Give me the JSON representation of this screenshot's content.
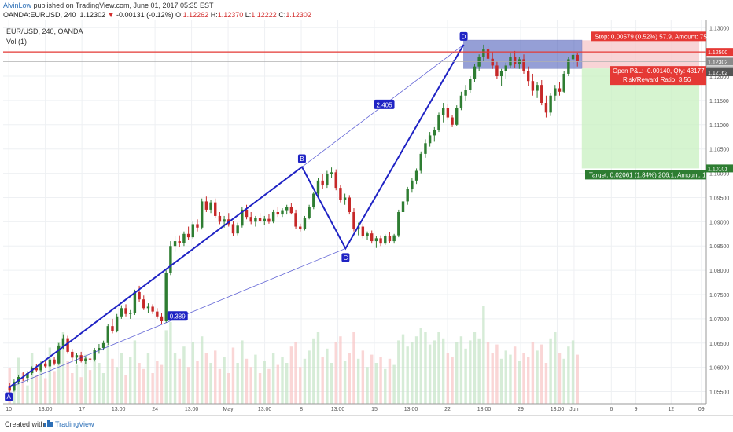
{
  "header": {
    "author": "AlvinLow",
    "published": "published on TradingView.com, June 01, 2017 05:35 EST",
    "symbol": "OANDA:EURUSD, 240",
    "last": "1.12302",
    "change": "-0.00131 (-0.12%)",
    "ohlc": {
      "o_label": "O:",
      "o": "1.12262",
      "h_label": "H:",
      "h": "1.12370",
      "l_label": "L:",
      "l": "1.12222",
      "c_label": "C:",
      "c": "1.12302"
    }
  },
  "legend": {
    "title": "EUR/USD, 240, OANDA",
    "vol": "Vol (1)"
  },
  "footer": {
    "created": "Created with",
    "brand": "TradingView"
  },
  "colors": {
    "up": "#2e7d32",
    "down": "#c62828",
    "pattern": "#1f23c4",
    "stop_zone": "#3f51b5",
    "target_zone": "#c8f0c0",
    "price_line": "#e53935"
  },
  "chart_data": {
    "type": "candlestick",
    "symbol": "EUR/USD",
    "interval": "240",
    "y_axis": {
      "range": [
        1.0525,
        1.1315
      ],
      "ticks": [
        "1.13000",
        "1.12500",
        "1.12000",
        "1.11500",
        "1.11000",
        "1.10500",
        "1.10000",
        "1.09500",
        "1.09000",
        "1.08500",
        "1.08000",
        "1.07500",
        "1.07000",
        "1.06500",
        "1.06000",
        "1.05500"
      ],
      "tick_values": [
        1.13,
        1.125,
        1.12,
        1.115,
        1.11,
        1.105,
        1.1,
        1.095,
        1.09,
        1.085,
        1.08,
        1.075,
        1.07,
        1.065,
        1.06,
        1.055
      ]
    },
    "x_axis": {
      "ticks": [
        "10",
        "13:00",
        "17",
        "13:00",
        "24",
        "13:00",
        "May",
        "13:00",
        "8",
        "13:00",
        "15",
        "13:00",
        "22",
        "13:00",
        "29",
        "13:00",
        "Jun",
        "6",
        "9",
        "12",
        "09"
      ],
      "tick_positions": [
        0.008,
        0.06,
        0.112,
        0.164,
        0.216,
        0.268,
        0.32,
        0.372,
        0.424,
        0.476,
        0.528,
        0.58,
        0.632,
        0.684,
        0.736,
        0.788,
        0.812,
        0.865,
        0.9,
        0.95,
        0.993
      ]
    },
    "price_labels": [
      {
        "value": "1.12500",
        "kind": "stop_line",
        "y": 1.125
      },
      {
        "value": "1.12302",
        "kind": "last",
        "y": 1.12302
      },
      {
        "value": "2:24:27",
        "kind": "countdown",
        "y": 1.1218
      },
      {
        "value": "1.12162",
        "kind": "entry",
        "y": 1.12162
      },
      {
        "value": "1.10101",
        "kind": "target",
        "y": 1.10101
      }
    ],
    "pattern": {
      "name": "ABCD",
      "points": [
        {
          "label": "A",
          "x": 0.008,
          "y": 1.0558
        },
        {
          "label": "B",
          "x": 0.425,
          "y": 1.1013
        },
        {
          "label": "C",
          "x": 0.487,
          "y": 1.0845
        },
        {
          "label": "D",
          "x": 0.655,
          "y": 1.1265
        }
      ],
      "ratios": [
        {
          "label": "0.389",
          "x": 0.248,
          "y": 1.0706
        },
        {
          "label": "2.405",
          "x": 0.542,
          "y": 1.1142
        }
      ]
    },
    "position": {
      "stop_text": "Stop: 0.00579 (0.52%) 57.9, Amount: 75",
      "pnl_text": "Open P&L: -0.00140, Qty: 43177",
      "rr_text": "Risk/Reward Ratio: 3.56",
      "target_text": "Target: 0.02061 (1.84%) 206.1, Amount: 1",
      "entry": 1.1216,
      "stop": 1.1274,
      "target": 1.101,
      "x_start": 0.655,
      "x_end": 0.99,
      "x_now": 0.823
    },
    "candles": [
      [
        1.056,
        1.0568,
        1.0548,
        1.0552
      ],
      [
        1.0552,
        1.0575,
        1.055,
        1.057
      ],
      [
        1.057,
        1.0585,
        1.0565,
        1.058
      ],
      [
        1.058,
        1.059,
        1.0572,
        1.0578
      ],
      [
        1.0578,
        1.0592,
        1.057,
        1.0588
      ],
      [
        1.0588,
        1.0602,
        1.0584,
        1.0598
      ],
      [
        1.0598,
        1.0606,
        1.059,
        1.0594
      ],
      [
        1.0594,
        1.0612,
        1.059,
        1.0608
      ],
      [
        1.0608,
        1.0614,
        1.0598,
        1.0602
      ],
      [
        1.0602,
        1.062,
        1.06,
        1.0616
      ],
      [
        1.0616,
        1.0622,
        1.0604,
        1.0608
      ],
      [
        1.0608,
        1.065,
        1.0605,
        1.0645
      ],
      [
        1.0645,
        1.0668,
        1.0638,
        1.066
      ],
      [
        1.066,
        1.0665,
        1.0628,
        1.0632
      ],
      [
        1.0632,
        1.0638,
        1.0612,
        1.062
      ],
      [
        1.062,
        1.063,
        1.0608,
        1.0625
      ],
      [
        1.0625,
        1.0632,
        1.061,
        1.0614
      ],
      [
        1.0614,
        1.0622,
        1.0606,
        1.0618
      ],
      [
        1.0618,
        1.0624,
        1.061,
        1.0616
      ],
      [
        1.0616,
        1.064,
        1.0612,
        1.0635
      ],
      [
        1.0635,
        1.0648,
        1.0628,
        1.064
      ],
      [
        1.064,
        1.0655,
        1.0635,
        1.065
      ],
      [
        1.065,
        1.069,
        1.0646,
        1.0685
      ],
      [
        1.0685,
        1.07,
        1.067,
        1.0675
      ],
      [
        1.0675,
        1.071,
        1.0672,
        1.0705
      ],
      [
        1.0705,
        1.0728,
        1.07,
        1.0722
      ],
      [
        1.0722,
        1.073,
        1.0705,
        1.071
      ],
      [
        1.071,
        1.0718,
        1.07,
        1.0712
      ],
      [
        1.0712,
        1.076,
        1.0708,
        1.0755
      ],
      [
        1.0755,
        1.0768,
        1.0735,
        1.074
      ],
      [
        1.074,
        1.0748,
        1.0718,
        1.0722
      ],
      [
        1.0722,
        1.0732,
        1.0712,
        1.0725
      ],
      [
        1.0725,
        1.073,
        1.071,
        1.0715
      ],
      [
        1.0715,
        1.0722,
        1.07,
        1.0705
      ],
      [
        1.0705,
        1.0712,
        1.069,
        1.0695
      ],
      [
        1.0695,
        1.08,
        1.0692,
        1.0795
      ],
      [
        1.0795,
        1.086,
        1.079,
        1.085
      ],
      [
        1.085,
        1.087,
        1.0838,
        1.086
      ],
      [
        1.086,
        1.0872,
        1.0848,
        1.0856
      ],
      [
        1.0856,
        1.088,
        1.085,
        1.0875
      ],
      [
        1.0875,
        1.089,
        1.0862,
        1.0868
      ],
      [
        1.0868,
        1.09,
        1.0865,
        1.0895
      ],
      [
        1.0895,
        1.0905,
        1.088,
        1.0888
      ],
      [
        1.0888,
        1.0948,
        1.0884,
        1.0942
      ],
      [
        1.0942,
        1.0952,
        1.092,
        1.0925
      ],
      [
        1.0925,
        1.0945,
        1.0918,
        1.094
      ],
      [
        1.094,
        1.0948,
        1.0908,
        1.0912
      ],
      [
        1.0912,
        1.092,
        1.0895,
        1.09
      ],
      [
        1.09,
        1.0912,
        1.0888,
        1.0905
      ],
      [
        1.0905,
        1.0918,
        1.089,
        1.0895
      ],
      [
        1.0895,
        1.0902,
        1.087,
        1.0876
      ],
      [
        1.0876,
        1.0898,
        1.0872,
        1.0892
      ],
      [
        1.0892,
        1.093,
        1.0888,
        1.0925
      ],
      [
        1.0925,
        1.0935,
        1.0905,
        1.091
      ],
      [
        1.091,
        1.092,
        1.0895,
        1.09
      ],
      [
        1.09,
        1.0912,
        1.089,
        1.0908
      ],
      [
        1.0908,
        1.0918,
        1.0898,
        1.0902
      ],
      [
        1.0902,
        1.0912,
        1.0894,
        1.0906
      ],
      [
        1.0906,
        1.0916,
        1.0896,
        1.09
      ],
      [
        1.09,
        1.0925,
        1.0897,
        1.092
      ],
      [
        1.092,
        1.093,
        1.091,
        1.0915
      ],
      [
        1.0915,
        1.0928,
        1.091,
        1.0924
      ],
      [
        1.0924,
        1.0935,
        1.0915,
        1.093
      ],
      [
        1.093,
        1.0938,
        1.0915,
        1.0918
      ],
      [
        1.0918,
        1.0925,
        1.0885,
        1.089
      ],
      [
        1.089,
        1.0896,
        1.088,
        1.0885
      ],
      [
        1.0885,
        1.0912,
        1.0882,
        1.0908
      ],
      [
        1.0908,
        1.0935,
        1.0905,
        1.093
      ],
      [
        1.093,
        1.0962,
        1.0926,
        1.0958
      ],
      [
        1.0958,
        1.099,
        1.0952,
        1.0985
      ],
      [
        1.0985,
        1.0998,
        1.0968,
        1.0975
      ],
      [
        1.0975,
        1.1005,
        1.097,
        1.0998
      ],
      [
        1.0998,
        1.1012,
        1.099,
        1.1002
      ],
      [
        1.1002,
        1.1008,
        1.0965,
        1.097
      ],
      [
        1.097,
        1.0975,
        1.094,
        1.0945
      ],
      [
        1.0945,
        1.0958,
        1.0935,
        1.095
      ],
      [
        1.095,
        1.0955,
        1.0915,
        1.092
      ],
      [
        1.092,
        1.0928,
        1.088,
        1.0885
      ],
      [
        1.0885,
        1.0898,
        1.0872,
        1.089
      ],
      [
        1.089,
        1.0896,
        1.0866,
        1.087
      ],
      [
        1.087,
        1.088,
        1.0862,
        1.0876
      ],
      [
        1.0876,
        1.0882,
        1.0855,
        1.086
      ],
      [
        1.086,
        1.087,
        1.0846,
        1.0866
      ],
      [
        1.0866,
        1.0872,
        1.085,
        1.0855
      ],
      [
        1.0855,
        1.0874,
        1.0852,
        1.087
      ],
      [
        1.087,
        1.0878,
        1.0856,
        1.086
      ],
      [
        1.086,
        1.0875,
        1.0855,
        1.0872
      ],
      [
        1.0872,
        1.0925,
        1.0868,
        1.092
      ],
      [
        1.092,
        1.0948,
        1.0915,
        1.0942
      ],
      [
        1.0942,
        1.0972,
        1.0935,
        1.0968
      ],
      [
        1.0968,
        1.099,
        1.096,
        1.0985
      ],
      [
        1.0985,
        1.101,
        1.0978,
        1.1005
      ],
      [
        1.1005,
        1.1045,
        1.1,
        1.104
      ],
      [
        1.104,
        1.107,
        1.1032,
        1.1062
      ],
      [
        1.1062,
        1.1085,
        1.1055,
        1.1078
      ],
      [
        1.1078,
        1.1095,
        1.1065,
        1.109
      ],
      [
        1.109,
        1.1125,
        1.1085,
        1.112
      ],
      [
        1.112,
        1.1145,
        1.1105,
        1.1135
      ],
      [
        1.1135,
        1.1142,
        1.111,
        1.1115
      ],
      [
        1.1115,
        1.112,
        1.1095,
        1.11
      ],
      [
        1.11,
        1.114,
        1.1098,
        1.1135
      ],
      [
        1.1135,
        1.1168,
        1.113,
        1.116
      ],
      [
        1.116,
        1.1182,
        1.115,
        1.1172
      ],
      [
        1.1172,
        1.12,
        1.1165,
        1.1195
      ],
      [
        1.1195,
        1.1225,
        1.1188,
        1.122
      ],
      [
        1.122,
        1.1245,
        1.121,
        1.124
      ],
      [
        1.124,
        1.1265,
        1.123,
        1.1255
      ],
      [
        1.1255,
        1.1262,
        1.123,
        1.1236
      ],
      [
        1.1236,
        1.125,
        1.1215,
        1.1222
      ],
      [
        1.1222,
        1.123,
        1.1195,
        1.12
      ],
      [
        1.12,
        1.1215,
        1.118,
        1.121
      ],
      [
        1.121,
        1.1228,
        1.1195,
        1.1222
      ],
      [
        1.1222,
        1.1248,
        1.1218,
        1.124
      ],
      [
        1.124,
        1.1252,
        1.1218,
        1.1225
      ],
      [
        1.1225,
        1.124,
        1.1215,
        1.1235
      ],
      [
        1.1235,
        1.1245,
        1.1205,
        1.121
      ],
      [
        1.121,
        1.122,
        1.118,
        1.119
      ],
      [
        1.119,
        1.1205,
        1.116,
        1.117
      ],
      [
        1.117,
        1.1188,
        1.1155,
        1.1182
      ],
      [
        1.1182,
        1.1192,
        1.114,
        1.1145
      ],
      [
        1.1145,
        1.116,
        1.1115,
        1.1125
      ],
      [
        1.1125,
        1.1165,
        1.1118,
        1.116
      ],
      [
        1.116,
        1.1182,
        1.115,
        1.1175
      ],
      [
        1.1175,
        1.1188,
        1.116,
        1.1168
      ],
      [
        1.1168,
        1.121,
        1.1165,
        1.1205
      ],
      [
        1.1205,
        1.124,
        1.12,
        1.1235
      ],
      [
        1.1235,
        1.125,
        1.1225,
        1.1244
      ],
      [
        1.1244,
        1.1248,
        1.122,
        1.123
      ]
    ],
    "volumes": [
      0.35,
      0.22,
      0.45,
      0.3,
      0.18,
      0.5,
      0.28,
      0.4,
      0.25,
      0.55,
      0.32,
      0.6,
      0.7,
      0.42,
      0.3,
      0.38,
      0.26,
      0.48,
      0.33,
      0.52,
      0.4,
      0.3,
      0.58,
      0.44,
      0.36,
      0.5,
      0.28,
      0.46,
      0.62,
      0.4,
      0.34,
      0.5,
      0.3,
      0.42,
      0.38,
      0.72,
      0.8,
      0.5,
      0.44,
      0.56,
      0.36,
      0.6,
      0.42,
      0.66,
      0.5,
      0.4,
      0.52,
      0.34,
      0.46,
      0.3,
      0.55,
      0.4,
      0.62,
      0.44,
      0.36,
      0.48,
      0.3,
      0.42,
      0.34,
      0.5,
      0.38,
      0.46,
      0.4,
      0.56,
      0.6,
      0.36,
      0.44,
      0.52,
      0.64,
      0.7,
      0.46,
      0.54,
      0.4,
      0.6,
      0.66,
      0.42,
      0.5,
      0.7,
      0.44,
      0.52,
      0.36,
      0.48,
      0.4,
      0.46,
      0.34,
      0.44,
      0.38,
      0.62,
      0.68,
      0.56,
      0.6,
      0.66,
      0.74,
      0.7,
      0.58,
      0.62,
      0.7,
      0.64,
      0.5,
      0.46,
      0.6,
      0.66,
      0.54,
      0.62,
      0.7,
      0.64,
      0.96,
      0.6,
      0.5,
      0.58,
      0.44,
      0.52,
      0.48,
      0.56,
      0.42,
      0.5,
      0.46,
      0.6,
      0.52,
      0.58,
      0.4,
      0.64,
      0.7,
      0.5,
      0.44,
      0.56,
      0.62,
      0.48,
      0.4
    ]
  }
}
